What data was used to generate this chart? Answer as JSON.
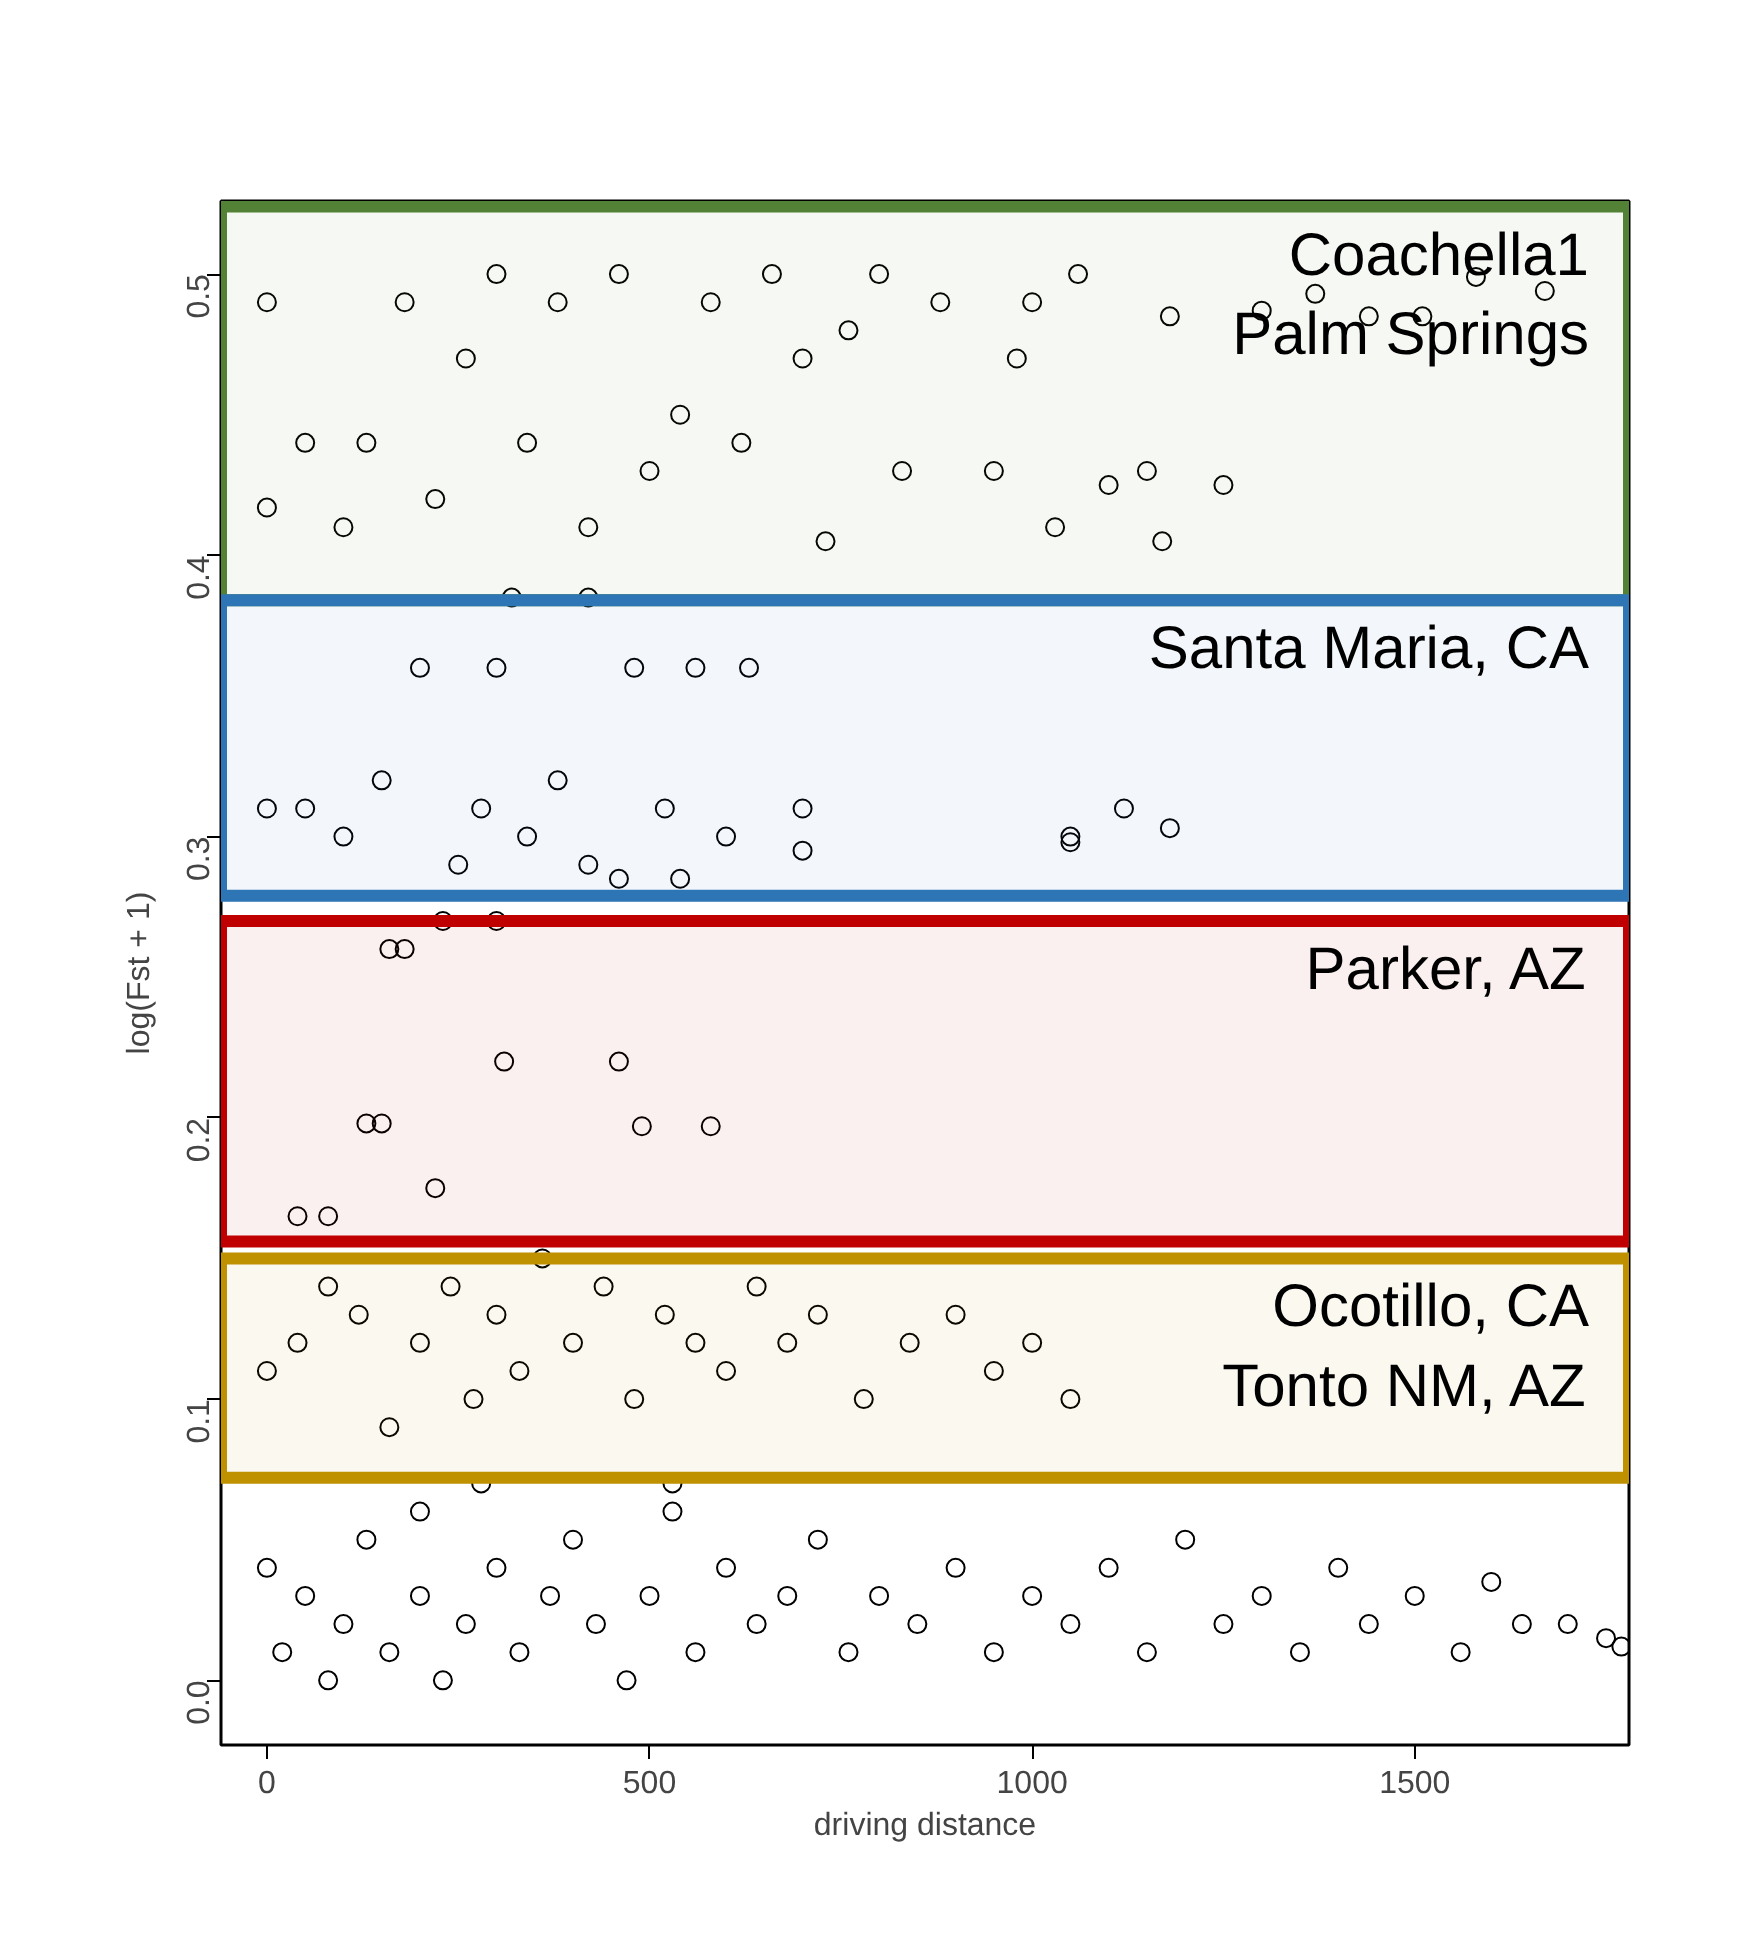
{
  "chart_data": {
    "type": "scatter",
    "xlabel": "driving distance",
    "ylabel": "log(Fst + 1)",
    "xlim": [
      -60,
      1780
    ],
    "ylim": [
      -0.023,
      0.526
    ],
    "xticks": [
      0,
      500,
      1000,
      1500
    ],
    "yticks": [
      {
        "value": 0,
        "label": "0.0"
      },
      0.1,
      0.2,
      0.3,
      0.4,
      0.5
    ],
    "grid": false,
    "marker": "circle",
    "bands": [
      {
        "axis": "y",
        "from": 0.384,
        "to": 0.524,
        "label": "Coachella1\nPalm Springs",
        "color": "#538135"
      },
      {
        "axis": "y",
        "from": 0.279,
        "to": 0.384,
        "label": "Santa Maria, CA",
        "color": "#2e75b6"
      },
      {
        "axis": "y",
        "from": 0.156,
        "to": 0.27,
        "label": "Parker, AZ",
        "color": "#c00000"
      },
      {
        "axis": "y",
        "from": 0.072,
        "to": 0.15,
        "label": "Ocotillo, CA\nTonto NM, AZ",
        "color": "#bf9000"
      }
    ],
    "series": [
      {
        "color": "#000000",
        "x": [
          0,
          20,
          50,
          80,
          100,
          130,
          160,
          200,
          230,
          260,
          300,
          330,
          370,
          400,
          430,
          470,
          500,
          530,
          560,
          600,
          640,
          680,
          720,
          760,
          800,
          850,
          900,
          950,
          1000,
          1050,
          1100,
          1150,
          1200,
          1250,
          1300,
          1350,
          1400,
          1440,
          1500,
          1560,
          1600,
          1640,
          1700,
          1750,
          1770,
          0,
          40,
          80,
          120,
          160,
          200,
          240,
          270,
          300,
          330,
          360,
          400,
          440,
          480,
          520,
          560,
          600,
          640,
          680,
          720,
          780,
          840,
          900,
          950,
          1000,
          1050,
          280,
          530,
          200,
          40,
          80,
          130,
          150,
          160,
          180,
          220,
          310,
          460,
          490,
          580,
          230,
          300,
          0,
          50,
          100,
          150,
          200,
          250,
          280,
          300,
          340,
          380,
          420,
          480,
          520,
          560,
          600,
          630,
          700,
          700,
          1050,
          1050,
          1120,
          1180,
          460,
          540,
          0,
          0,
          50,
          100,
          130,
          180,
          220,
          260,
          300,
          340,
          380,
          420,
          460,
          500,
          540,
          580,
          620,
          660,
          700,
          730,
          760,
          800,
          830,
          880,
          950,
          980,
          1000,
          1030,
          1060,
          1100,
          1150,
          1170,
          1180,
          1250,
          1300,
          1370,
          1440,
          1510,
          1580,
          1670,
          320,
          420
        ],
        "values": [
          0.04,
          0.01,
          0.03,
          0.0,
          0.02,
          0.05,
          0.01,
          0.03,
          0.0,
          0.02,
          0.04,
          0.01,
          0.03,
          0.05,
          0.02,
          0.0,
          0.03,
          0.06,
          0.01,
          0.04,
          0.02,
          0.03,
          0.05,
          0.01,
          0.03,
          0.02,
          0.04,
          0.01,
          0.03,
          0.02,
          0.04,
          0.01,
          0.05,
          0.02,
          0.03,
          0.01,
          0.04,
          0.02,
          0.03,
          0.01,
          0.035,
          0.02,
          0.02,
          0.015,
          0.012,
          0.11,
          0.12,
          0.14,
          0.13,
          0.09,
          0.12,
          0.14,
          0.1,
          0.13,
          0.11,
          0.15,
          0.12,
          0.14,
          0.1,
          0.13,
          0.12,
          0.11,
          0.14,
          0.12,
          0.13,
          0.1,
          0.12,
          0.13,
          0.11,
          0.12,
          0.1,
          0.07,
          0.07,
          0.06,
          0.165,
          0.165,
          0.198,
          0.198,
          0.26,
          0.26,
          0.175,
          0.22,
          0.22,
          0.197,
          0.197,
          0.27,
          0.27,
          0.31,
          0.31,
          0.3,
          0.32,
          0.36,
          0.29,
          0.31,
          0.36,
          0.3,
          0.32,
          0.29,
          0.36,
          0.31,
          0.36,
          0.3,
          0.36,
          0.31,
          0.295,
          0.3,
          0.298,
          0.31,
          0.303,
          0.285,
          0.285,
          0.49,
          0.417,
          0.44,
          0.41,
          0.44,
          0.49,
          0.42,
          0.47,
          0.5,
          0.44,
          0.49,
          0.41,
          0.5,
          0.43,
          0.45,
          0.49,
          0.44,
          0.5,
          0.47,
          0.405,
          0.48,
          0.5,
          0.43,
          0.49,
          0.43,
          0.47,
          0.49,
          0.41,
          0.5,
          0.425,
          0.43,
          0.405,
          0.485,
          0.425,
          0.487,
          0.493,
          0.485,
          0.485,
          0.499,
          0.494,
          0.385,
          0.385
        ]
      }
    ]
  }
}
